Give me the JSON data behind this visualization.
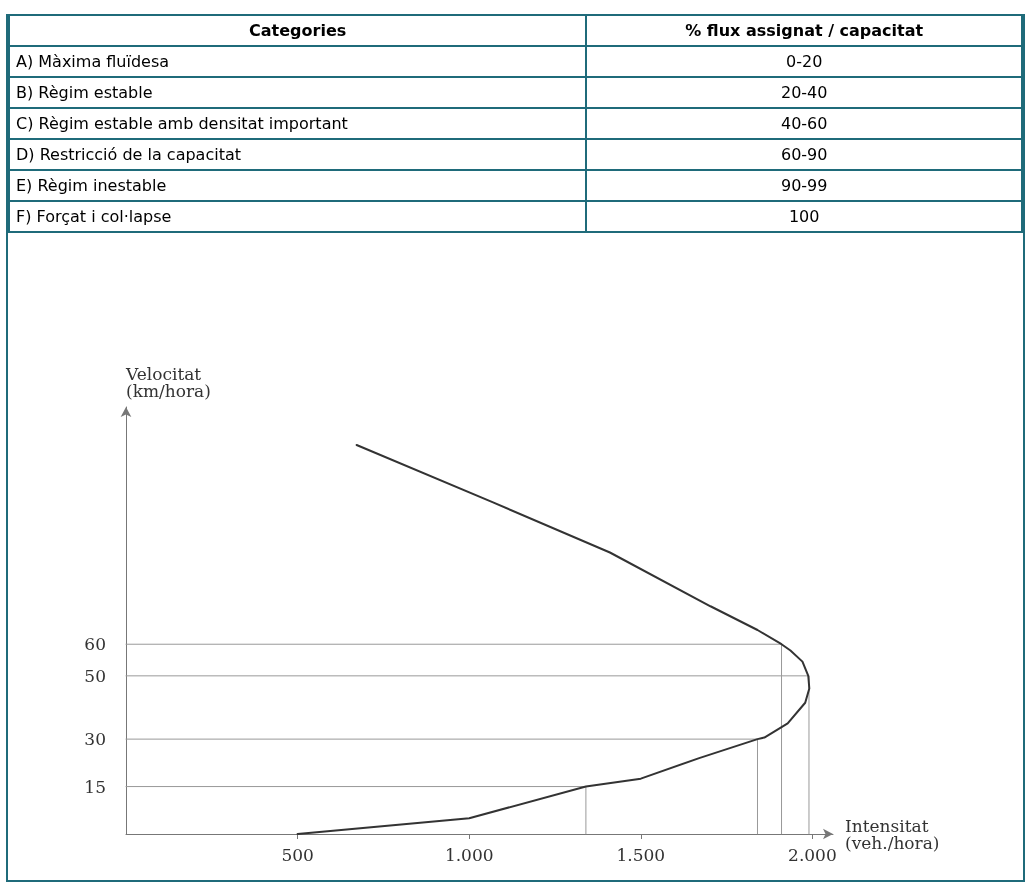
{
  "chart_data": [
    {
      "type": "other",
      "xlabel": "Categories",
      "ylabel": "% flux assignat / capacitat",
      "categories": [
        "A) Màxima fluïdesa",
        "B) Règim estable",
        "C) Règim estable amb densitat important",
        "D) Restricció de la capacitat",
        "E) Règim inestable",
        "F) Forçat i col·lapse"
      ],
      "value_labels": [
        "0-20",
        "20-40",
        "40-60",
        "60-90",
        "90-99",
        "100"
      ]
    },
    {
      "type": "line",
      "xlabel": "Intensitat\n(veh./hora)",
      "ylabel": "Velocitat\n(km/hora)",
      "marker": "none",
      "xlim": [
        0,
        2060
      ],
      "xticks": [
        500,
        {
          "value": 1000,
          "label": "1.000"
        },
        {
          "value": 1500,
          "label": "1.500"
        },
        {
          "value": 2000,
          "label": "2.000"
        }
      ],
      "ylim": [
        0,
        135
      ],
      "yticks": [
        15,
        30,
        50,
        60
      ],
      "series": [
        {
          "color": "#333333",
          "x": [
            672,
            1066,
            1410,
            1703,
            1840,
            1910,
            1936,
            1971,
            1988,
            1991,
            1979,
            1928,
            1860,
            1840,
            1670,
            1500,
            1340,
            1000,
            500
          ],
          "values": [
            123,
            105,
            89,
            72,
            64.5,
            60,
            58,
            54.5,
            50,
            46,
            41.5,
            35,
            30.5,
            30,
            24,
            17.5,
            15,
            5,
            0
          ]
        },
        {
          "color": "#999999",
          "x": [
            0,
            1910,
            1910
          ],
          "values": [
            60,
            60,
            0
          ]
        },
        {
          "color": "#999999",
          "x": [
            0,
            1990,
            1990
          ],
          "values": [
            50,
            50,
            0
          ]
        },
        {
          "color": "#999999",
          "x": [
            0,
            1840,
            1840
          ],
          "values": [
            30,
            30,
            0
          ]
        },
        {
          "color": "#999999",
          "x": [
            0,
            1340,
            1340
          ],
          "values": [
            15,
            15,
            0
          ]
        }
      ]
    }
  ]
}
